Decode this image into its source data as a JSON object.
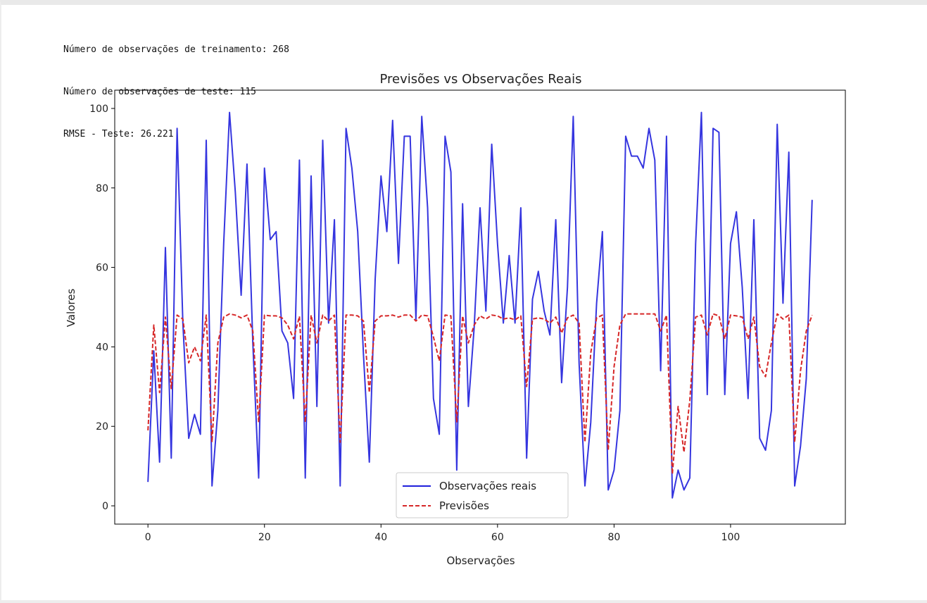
{
  "output": {
    "lines": [
      "Número de observações de treinamento: 268",
      "Número de observações de teste: 115",
      "RMSE - Teste: 26.221"
    ]
  },
  "chart_data": {
    "type": "line",
    "title": "Previsões vs Observações Reais",
    "xlabel": "Observações",
    "ylabel": "Valores",
    "xlim": [
      -5.7,
      119.7
    ],
    "ylim": [
      -4.6,
      104.6
    ],
    "xticks": [
      0,
      20,
      40,
      60,
      80,
      100
    ],
    "yticks": [
      0,
      20,
      40,
      60,
      80,
      100
    ],
    "grid": false,
    "legend_position": "lower center",
    "x": [
      0,
      1,
      2,
      3,
      4,
      5,
      6,
      7,
      8,
      9,
      10,
      11,
      12,
      13,
      14,
      15,
      16,
      17,
      18,
      19,
      20,
      21,
      22,
      23,
      24,
      25,
      26,
      27,
      28,
      29,
      30,
      31,
      32,
      33,
      34,
      35,
      36,
      37,
      38,
      39,
      40,
      41,
      42,
      43,
      44,
      45,
      46,
      47,
      48,
      49,
      50,
      51,
      52,
      53,
      54,
      55,
      56,
      57,
      58,
      59,
      60,
      61,
      62,
      63,
      64,
      65,
      66,
      67,
      68,
      69,
      70,
      71,
      72,
      73,
      74,
      75,
      76,
      77,
      78,
      79,
      80,
      81,
      82,
      83,
      84,
      85,
      86,
      87,
      88,
      89,
      90,
      91,
      92,
      93,
      94,
      95,
      96,
      97,
      98,
      99,
      100,
      101,
      102,
      103,
      104,
      105,
      106,
      107,
      108,
      109,
      110,
      111,
      112,
      113,
      114
    ],
    "series": [
      {
        "name": "Observações reais",
        "color": "#1f1fdb",
        "style": "solid",
        "values": [
          6,
          39,
          11,
          65,
          12,
          95,
          46,
          17,
          23,
          18,
          92,
          5,
          24,
          66,
          99,
          79,
          53,
          86,
          41,
          7,
          85,
          67,
          69,
          44,
          41,
          27,
          87,
          7,
          83,
          25,
          92,
          46,
          72,
          5,
          95,
          85,
          69,
          38,
          11,
          57,
          83,
          69,
          97,
          61,
          93,
          93,
          47,
          98,
          75,
          27,
          18,
          93,
          84,
          9,
          76,
          25,
          45,
          75,
          49,
          91,
          66,
          46,
          63,
          46,
          75,
          12,
          52,
          59,
          49,
          43,
          72,
          31,
          55,
          98,
          36,
          5,
          21,
          51,
          69,
          4,
          9,
          24,
          93,
          88,
          88,
          85,
          95,
          87,
          34,
          93,
          2,
          9,
          4,
          7,
          66,
          99,
          28,
          95,
          94,
          28,
          66,
          74,
          55,
          27,
          72,
          17,
          14,
          24,
          96,
          51,
          89,
          5,
          15,
          32,
          77
        ]
      },
      {
        "name": "Previsões",
        "color": "#d62728",
        "style": "dashed",
        "values": [
          19,
          45.5,
          28.5,
          47.5,
          29.5,
          48,
          47,
          36,
          40,
          36.5,
          48,
          16,
          41,
          47.5,
          48.3,
          48,
          47.3,
          48,
          44,
          21,
          48,
          47.8,
          47.8,
          47.3,
          45.5,
          42,
          47.7,
          21,
          48,
          41,
          48,
          46.5,
          48,
          16,
          48,
          48,
          47.8,
          46.5,
          28.5,
          46.5,
          47.8,
          47.8,
          48,
          47.5,
          48,
          48,
          46.5,
          48,
          47.8,
          42.5,
          36.5,
          48,
          47.8,
          21,
          47.8,
          41,
          45.5,
          47.8,
          47,
          48,
          47.8,
          47,
          47.3,
          46.8,
          47.8,
          30,
          47,
          47.3,
          47,
          46,
          47.5,
          43.5,
          47.3,
          48,
          46,
          16,
          38.5,
          47.3,
          48,
          14,
          35,
          45.5,
          48.3,
          48.3,
          48.3,
          48.3,
          48.3,
          48.3,
          44,
          48,
          8,
          25,
          13.5,
          26.5,
          47.5,
          48,
          43,
          48.3,
          47.8,
          42,
          48,
          47.8,
          47.5,
          42,
          47.5,
          35,
          32.5,
          41,
          48.3,
          47,
          48,
          16,
          34,
          44,
          48
        ]
      }
    ]
  }
}
